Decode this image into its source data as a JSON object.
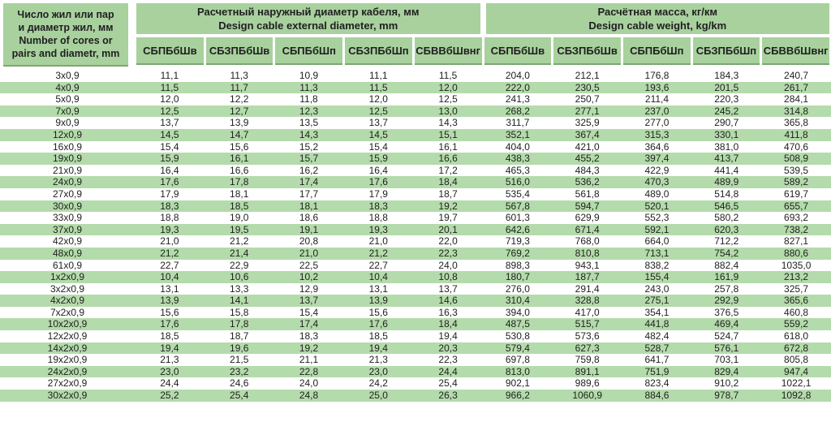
{
  "table": {
    "corner": {
      "lines": [
        "Число жил или пар",
        "и диаметр жил, мм",
        "Number of cores or",
        "pairs and diametr, mm"
      ]
    },
    "groups": [
      {
        "title_ru": "Расчетный наружный диаметр кабеля, мм",
        "title_en": "Design cable external diameter, mm"
      },
      {
        "title_ru": "Расчётная масса, кг/км",
        "title_en": "Design cable weight, kg/km"
      }
    ],
    "subheaders": [
      "СБПБбШв",
      "СБЗПБбШв",
      "СБПБбШп",
      "СБЗПБбШп",
      "СБВВбШвнг",
      "СБПБбШв",
      "СБЗПБбШв",
      "СБПБбШп",
      "СБЗПБбШп",
      "СБВВбШвнг"
    ],
    "rows": [
      {
        "label": "3x0,9",
        "values": [
          "11,1",
          "11,3",
          "10,9",
          "11,1",
          "11,5",
          "204,0",
          "212,1",
          "176,8",
          "184,3",
          "240,7"
        ]
      },
      {
        "label": "4x0,9",
        "values": [
          "11,5",
          "11,7",
          "11,3",
          "11,5",
          "12,0",
          "222,0",
          "230,5",
          "193,6",
          "201,5",
          "261,7"
        ]
      },
      {
        "label": "5x0,9",
        "values": [
          "12,0",
          "12,2",
          "11,8",
          "12,0",
          "12,5",
          "241,3",
          "250,7",
          "211,4",
          "220,3",
          "284,1"
        ]
      },
      {
        "label": "7x0,9",
        "values": [
          "12,5",
          "12,7",
          "12,3",
          "12,5",
          "13,0",
          "268,2",
          "277,1",
          "237,0",
          "245,2",
          "314,8"
        ]
      },
      {
        "label": "9x0,9",
        "values": [
          "13,7",
          "13,9",
          "13,5",
          "13,7",
          "14,3",
          "311,7",
          "325,9",
          "277,0",
          "290,7",
          "365,8"
        ]
      },
      {
        "label": "12x0,9",
        "values": [
          "14,5",
          "14,7",
          "14,3",
          "14,5",
          "15,1",
          "352,1",
          "367,4",
          "315,3",
          "330,1",
          "411,8"
        ]
      },
      {
        "label": "16x0,9",
        "values": [
          "15,4",
          "15,6",
          "15,2",
          "15,4",
          "16,1",
          "404,0",
          "421,0",
          "364,6",
          "381,0",
          "470,6"
        ]
      },
      {
        "label": "19x0,9",
        "values": [
          "15,9",
          "16,1",
          "15,7",
          "15,9",
          "16,6",
          "438,3",
          "455,2",
          "397,4",
          "413,7",
          "508,9"
        ]
      },
      {
        "label": "21x0,9",
        "values": [
          "16,4",
          "16,6",
          "16,2",
          "16,4",
          "17,2",
          "465,3",
          "484,3",
          "422,9",
          "441,4",
          "539,5"
        ]
      },
      {
        "label": "24x0,9",
        "values": [
          "17,6",
          "17,8",
          "17,4",
          "17,6",
          "18,4",
          "516,0",
          "536,2",
          "470,3",
          "489,9",
          "589,2"
        ]
      },
      {
        "label": "27x0,9",
        "values": [
          "17,9",
          "18,1",
          "17,7",
          "17,9",
          "18,7",
          "535,4",
          "561,8",
          "489,0",
          "514,8",
          "619,7"
        ]
      },
      {
        "label": "30x0,9",
        "values": [
          "18,3",
          "18,5",
          "18,1",
          "18,3",
          "19,2",
          "567,8",
          "594,7",
          "520,1",
          "546,5",
          "655,7"
        ]
      },
      {
        "label": "33x0,9",
        "values": [
          "18,8",
          "19,0",
          "18,6",
          "18,8",
          "19,7",
          "601,3",
          "629,9",
          "552,3",
          "580,2",
          "693,2"
        ]
      },
      {
        "label": "37x0,9",
        "values": [
          "19,3",
          "19,5",
          "19,1",
          "19,3",
          "20,1",
          "642,6",
          "671,4",
          "592,1",
          "620,3",
          "738,2"
        ]
      },
      {
        "label": "42x0,9",
        "values": [
          "21,0",
          "21,2",
          "20,8",
          "21,0",
          "22,0",
          "719,3",
          "768,0",
          "664,0",
          "712,2",
          "827,1"
        ]
      },
      {
        "label": "48x0,9",
        "values": [
          "21,2",
          "21,4",
          "21,0",
          "21,2",
          "22,3",
          "769,2",
          "810,8",
          "713,1",
          "754,2",
          "880,6"
        ]
      },
      {
        "label": "61x0,9",
        "values": [
          "22,7",
          "22,9",
          "22,5",
          "22,7",
          "24,0",
          "898,3",
          "943,1",
          "838,2",
          "882,4",
          "1035,0"
        ]
      },
      {
        "label": "1x2x0,9",
        "values": [
          "10,4",
          "10,6",
          "10,2",
          "10,4",
          "10,8",
          "180,7",
          "187,7",
          "155,4",
          "161,9",
          "213,2"
        ]
      },
      {
        "label": "3x2x0,9",
        "values": [
          "13,1",
          "13,3",
          "12,9",
          "13,1",
          "13,7",
          "276,0",
          "291,4",
          "243,0",
          "257,8",
          "325,7"
        ]
      },
      {
        "label": "4x2x0,9",
        "values": [
          "13,9",
          "14,1",
          "13,7",
          "13,9",
          "14,6",
          "310,4",
          "328,8",
          "275,1",
          "292,9",
          "365,6"
        ]
      },
      {
        "label": "7x2x0,9",
        "values": [
          "15,6",
          "15,8",
          "15,4",
          "15,6",
          "16,3",
          "394,0",
          "417,0",
          "354,1",
          "376,5",
          "460,8"
        ]
      },
      {
        "label": "10x2x0,9",
        "values": [
          "17,6",
          "17,8",
          "17,4",
          "17,6",
          "18,4",
          "487,5",
          "515,7",
          "441,8",
          "469,4",
          "559,2"
        ]
      },
      {
        "label": "12x2x0,9",
        "values": [
          "18,5",
          "18,7",
          "18,3",
          "18,5",
          "19,4",
          "530,8",
          "573,6",
          "482,4",
          "524,7",
          "618,0"
        ]
      },
      {
        "label": "14x2x0,9",
        "values": [
          "19,4",
          "19,6",
          "19,2",
          "19,4",
          "20,3",
          "579,4",
          "627,3",
          "528,7",
          "576,1",
          "672,8"
        ]
      },
      {
        "label": "19x2x0,9",
        "values": [
          "21,3",
          "21,5",
          "21,1",
          "21,3",
          "22,3",
          "697,8",
          "759,8",
          "641,7",
          "703,1",
          "805,8"
        ]
      },
      {
        "label": "24x2x0,9",
        "values": [
          "23,0",
          "23,2",
          "22,8",
          "23,0",
          "24,4",
          "813,0",
          "891,1",
          "751,9",
          "829,4",
          "947,4"
        ]
      },
      {
        "label": "27x2x0,9",
        "values": [
          "24,4",
          "24,6",
          "24,0",
          "24,2",
          "25,4",
          "902,1",
          "989,6",
          "823,4",
          "910,2",
          "1022,1"
        ]
      },
      {
        "label": "30x2x0,9",
        "values": [
          "25,2",
          "25,4",
          "24,8",
          "25,0",
          "26,3",
          "966,2",
          "1060,9",
          "884,6",
          "978,7",
          "1092,8"
        ]
      }
    ]
  },
  "colors": {
    "header_green": "#a8d19e",
    "stripe_green": "#b4dbab",
    "underline_green": "#7da575",
    "text": "#1f1f1f"
  }
}
